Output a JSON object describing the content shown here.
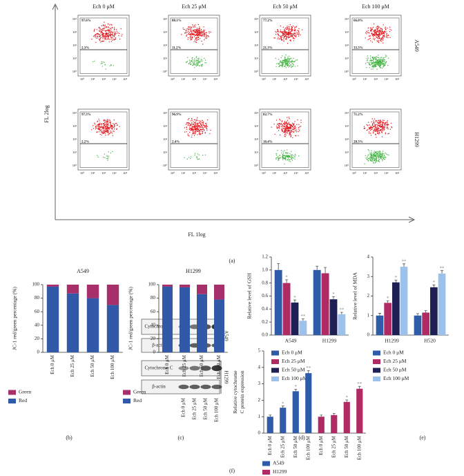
{
  "panels": [
    "(a)",
    "(b)",
    "(c)",
    "(d)",
    "(e)",
    "(f)"
  ],
  "flow": {
    "x_label": "FL 1log",
    "y_label": "FL 2log",
    "tick_labels": [
      "10⁰",
      "10¹",
      "10²",
      "10³",
      "10⁴"
    ],
    "columns": [
      "Ech 0 μM",
      "Ech 25 μM",
      "Ech 50 μM",
      "Ech 100 μM"
    ],
    "rows": [
      {
        "name": "A549",
        "upper": [
          "97.6%",
          "88.1%",
          "77.2%",
          "66.0%"
        ],
        "lower": [
          "2.3%",
          "11.2%",
          "21.3%",
          "33.3%"
        ]
      },
      {
        "name": "H1299",
        "upper": [
          "97.3%",
          "96.9%",
          "82.7%",
          "71.2%"
        ],
        "lower": [
          "2.2%",
          "2.4%",
          "16.4%",
          "28.3%"
        ]
      }
    ]
  },
  "blot": {
    "proteins": [
      "Cytochrome C",
      "β-actin"
    ],
    "cell_lines": [
      "A549",
      "H1299"
    ],
    "lanes": [
      "Ech 0 μM",
      "Ech 25 μM",
      "Ech 50 μM",
      "Ech 100 μM"
    ]
  },
  "chart_data": [
    {
      "type": "bar",
      "stacked": true,
      "title": "A549",
      "y_label": "JC-1 red/green percentage (%)",
      "categories": [
        "Ech 0 μM",
        "Ech 25 μM",
        "Ech 50 μM",
        "Ech 100 μM"
      ],
      "series": [
        {
          "name": "Red",
          "color": "#3159a8",
          "values": [
            97,
            87,
            80,
            70
          ]
        },
        {
          "name": "Green",
          "color": "#a72f6a",
          "values": [
            3,
            13,
            20,
            30
          ]
        }
      ],
      "ylim": [
        0,
        100
      ],
      "yticks": [
        0,
        20,
        40,
        60,
        80,
        100
      ]
    },
    {
      "type": "bar",
      "stacked": true,
      "title": "H1299",
      "y_label": "JC-1 red/green percentage (%)",
      "categories": [
        "Ech 0 μM",
        "Ech 25 μM",
        "Ech 50 μM",
        "Ech 100 μM"
      ],
      "series": [
        {
          "name": "Red",
          "color": "#3159a8",
          "values": [
            97,
            96,
            86,
            78
          ]
        },
        {
          "name": "Green",
          "color": "#a72f6a",
          "values": [
            3,
            4,
            14,
            22
          ]
        }
      ],
      "ylim": [
        0,
        100
      ],
      "yticks": [
        0,
        20,
        40,
        60,
        80,
        100
      ]
    },
    {
      "type": "bar",
      "y_label": "Relative level of GSH",
      "categories": [
        "A549",
        "H1299"
      ],
      "series": [
        {
          "name": "Ech 0 μM",
          "color": "#2f5ca8",
          "values": [
            1.0,
            1.0
          ],
          "errors": [
            0.1,
            0.06
          ],
          "significance": [
            null,
            null
          ]
        },
        {
          "name": "Ech 25 μM",
          "color": "#b02a64",
          "values": [
            0.8,
            0.95
          ],
          "errors": [
            0.05,
            0.09
          ],
          "significance": [
            "*",
            null
          ]
        },
        {
          "name": "Ech 50 μM",
          "color": "#1d1f55",
          "values": [
            0.5,
            0.55
          ],
          "errors": [
            0.04,
            0.04
          ],
          "significance": [
            "*",
            "*"
          ]
        },
        {
          "name": "Ech 100 μM",
          "color": "#9cc1ea",
          "values": [
            0.22,
            0.32
          ],
          "errors": [
            0.03,
            0.03
          ],
          "significance": [
            "**",
            "**"
          ]
        }
      ],
      "ylim": [
        0,
        1.2
      ],
      "yticks": [
        {
          "value": 0,
          "label": "0.0"
        },
        0.2,
        0.4,
        0.6,
        0.8,
        {
          "value": 1,
          "label": "1.0"
        },
        1.2
      ]
    },
    {
      "type": "bar",
      "y_label": "Relative level of MDA",
      "categories": [
        "H1299",
        "H520"
      ],
      "series": [
        {
          "name": "Ech 0 μM",
          "color": "#2f5ca8",
          "values": [
            1.0,
            1.0
          ],
          "errors": [
            0.12,
            0.1
          ],
          "significance": [
            null,
            null
          ]
        },
        {
          "name": "Ech 25 μM",
          "color": "#b02a64",
          "values": [
            1.65,
            1.15
          ],
          "errors": [
            0.1,
            0.1
          ],
          "significance": [
            "*",
            null
          ]
        },
        {
          "name": "Ech 50 μM",
          "color": "#1d1f55",
          "values": [
            2.7,
            2.45
          ],
          "errors": [
            0.12,
            0.12
          ],
          "significance": [
            "*",
            "*"
          ]
        },
        {
          "name": "Ech 100 μM",
          "color": "#9cc1ea",
          "values": [
            3.5,
            3.15
          ],
          "errors": [
            0.15,
            0.15
          ],
          "significance": [
            "**",
            "**"
          ]
        }
      ],
      "ylim": [
        0,
        4
      ],
      "yticks": [
        0,
        1,
        2,
        3,
        4
      ]
    },
    {
      "type": "bar",
      "y_label": "Relative cytochrome C protein expression",
      "categories": [
        "Ech 0 μM",
        "Ech 25 μM",
        "Ech 50 μM",
        "Ech 100 μM",
        "Ech 0 μM",
        "Ech 25 μM",
        "Ech 50 μM",
        "Ech 100 μM"
      ],
      "series": [
        {
          "name": "A549",
          "color": "#2f5ca8",
          "values": [
            1.0,
            1.55,
            2.55,
            3.65,
            null,
            null,
            null,
            null
          ],
          "errors": [
            0.1,
            0.1,
            0.12,
            0.15,
            null,
            null,
            null,
            null
          ],
          "significance": [
            null,
            "*",
            "*",
            "**",
            null,
            null,
            null,
            null
          ]
        },
        {
          "name": "H1299",
          "color": "#b02a64",
          "values": [
            null,
            null,
            null,
            null,
            1.0,
            1.1,
            1.9,
            2.7
          ],
          "errors": [
            null,
            null,
            null,
            null,
            0.1,
            0.1,
            0.12,
            0.15
          ],
          "significance": [
            null,
            null,
            null,
            null,
            null,
            null,
            "*",
            "**"
          ]
        }
      ],
      "ylim": [
        0,
        5
      ],
      "yticks": [
        0,
        1,
        2,
        3,
        4,
        5
      ]
    }
  ]
}
